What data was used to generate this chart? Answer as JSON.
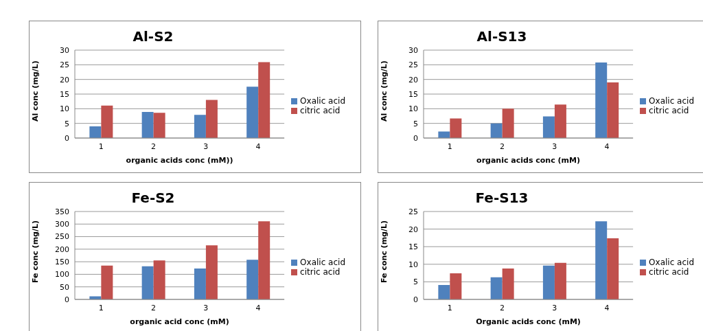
{
  "chart_data": [
    {
      "type": "bar",
      "title": "Al-S2",
      "xlabel": "organic acids conc (mM))",
      "ylabel": "Al conc (mg/L)",
      "categories": [
        "1",
        "2",
        "3",
        "4"
      ],
      "series": [
        {
          "name": "Oxalic acid",
          "color": "#4f81bd",
          "values": [
            4,
            8.9,
            7.9,
            17.5
          ]
        },
        {
          "name": "citric acid",
          "color": "#c0504d",
          "values": [
            11.1,
            8.6,
            13,
            25.9
          ]
        }
      ],
      "ylim": [
        0,
        30
      ],
      "yticks": [
        0,
        5,
        10,
        15,
        20,
        25,
        30
      ],
      "grid": "y",
      "legend": "right"
    },
    {
      "type": "bar",
      "title": "Al-S13",
      "xlabel": "organic acids conc (mM)",
      "ylabel": "Al conc (mg/L)",
      "categories": [
        "1",
        "2",
        "3",
        "4"
      ],
      "series": [
        {
          "name": "Oxalic acid",
          "color": "#4f81bd",
          "values": [
            2.2,
            5,
            7.4,
            25.8
          ]
        },
        {
          "name": "citric acid",
          "color": "#c0504d",
          "values": [
            6.7,
            10,
            11.4,
            19
          ]
        }
      ],
      "ylim": [
        0,
        30
      ],
      "yticks": [
        0,
        5,
        10,
        15,
        20,
        25,
        30
      ],
      "grid": "y",
      "legend": "right"
    },
    {
      "type": "bar",
      "title": "Fe-S2",
      "xlabel": "organic acid conc (mM)",
      "ylabel": "Fe conc (mg/L)",
      "categories": [
        "1",
        "2",
        "3",
        "4"
      ],
      "series": [
        {
          "name": "Oxalic acid",
          "color": "#4f81bd",
          "values": [
            12,
            132,
            123,
            158
          ]
        },
        {
          "name": "citric acid",
          "color": "#c0504d",
          "values": [
            135,
            155,
            215,
            311
          ]
        }
      ],
      "ylim": [
        0,
        350
      ],
      "yticks": [
        0,
        50,
        100,
        150,
        200,
        250,
        300,
        350
      ],
      "grid": "y",
      "legend": "right"
    },
    {
      "type": "bar",
      "title": "Fe-S13",
      "xlabel": "Organic acids conc (mM)",
      "ylabel": "Fe conc (mg/L)",
      "categories": [
        "1",
        "2",
        "3",
        "4"
      ],
      "series": [
        {
          "name": "Oxalic acid",
          "color": "#4f81bd",
          "values": [
            4.1,
            6.3,
            9.6,
            22.2
          ]
        },
        {
          "name": "citric acid",
          "color": "#c0504d",
          "values": [
            7.4,
            8.8,
            10.4,
            17.4
          ]
        }
      ],
      "ylim": [
        0,
        25
      ],
      "yticks": [
        0,
        5,
        10,
        15,
        20,
        25
      ],
      "grid": "y",
      "legend": "right"
    }
  ]
}
